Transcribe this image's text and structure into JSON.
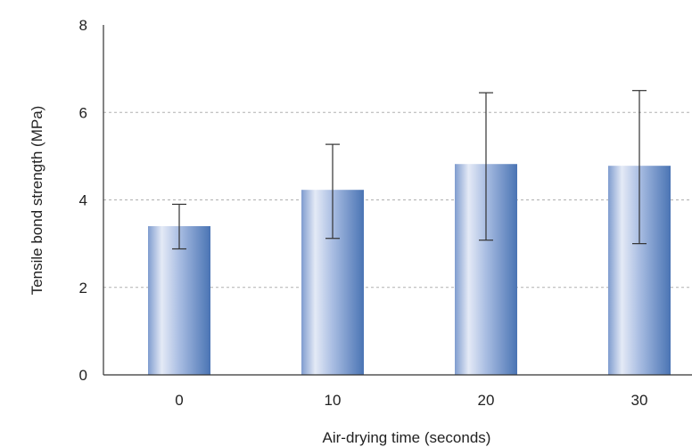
{
  "chart_data": {
    "type": "bar",
    "categories": [
      "0",
      "10",
      "20",
      "30"
    ],
    "values": [
      3.4,
      4.23,
      4.82,
      4.78
    ],
    "error_low": [
      2.88,
      3.12,
      3.08,
      3.0
    ],
    "error_high": [
      3.9,
      5.27,
      6.45,
      6.5
    ],
    "title": "",
    "xlabel": "Air-drying time (seconds)",
    "ylabel": "Tensile bond strength (MPa)",
    "ylim": [
      0,
      8
    ],
    "yticks": [
      "0",
      "2",
      "4",
      "6",
      "8"
    ],
    "gridlines": [
      2,
      4,
      6
    ],
    "grid": "horizontal dashed",
    "legend": "none",
    "colors": {
      "bar_light": "#dfe6f4",
      "bar_dark": "#4a74b4",
      "bar_mid": "#8ea6d4",
      "grid": "#b0b0b0",
      "axis": "#333333",
      "error_bar": "#333333"
    }
  }
}
